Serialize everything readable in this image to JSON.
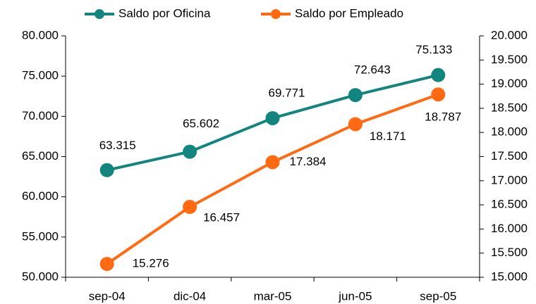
{
  "chart_data": {
    "type": "line",
    "categories": [
      "sep-04",
      "dic-04",
      "mar-05",
      "jun-05",
      "sep-05"
    ],
    "series": [
      {
        "name": "Saldo por Oficina",
        "color": "#13857f",
        "values": [
          63315,
          65602,
          69771,
          72643,
          75133
        ],
        "value_labels": [
          "63.315",
          "65.602",
          "69.771",
          "72.643",
          "75.133"
        ]
      },
      {
        "name": "Saldo por Empleado",
        "color": "#ff6a13",
        "axis": "y2",
        "values": [
          15276,
          16457,
          17384,
          18171,
          18787
        ],
        "value_labels": [
          "15.276",
          "16.457",
          "17.384",
          "18.171",
          "18.787"
        ]
      }
    ],
    "ylim": [
      50000,
      80000
    ],
    "yticks": [
      {
        "value": 50000,
        "label": "50.000"
      },
      {
        "value": 55000,
        "label": "55.000"
      },
      {
        "value": 60000,
        "label": "60.000"
      },
      {
        "value": 65000,
        "label": "65.000"
      },
      {
        "value": 70000,
        "label": "70.000"
      },
      {
        "value": 75000,
        "label": "75.000"
      },
      {
        "value": 80000,
        "label": "80.000"
      }
    ],
    "y2lim": [
      15000,
      20000
    ],
    "y2ticks": [
      {
        "value": 15000,
        "label": "15.000"
      },
      {
        "value": 15500,
        "label": "15.500"
      },
      {
        "value": 16000,
        "label": "16.000"
      },
      {
        "value": 16500,
        "label": "16.500"
      },
      {
        "value": 17000,
        "label": "17.000"
      },
      {
        "value": 17500,
        "label": "17.500"
      },
      {
        "value": 18000,
        "label": "18.000"
      },
      {
        "value": 18500,
        "label": "18.500"
      },
      {
        "value": 19000,
        "label": "19.000"
      },
      {
        "value": 19500,
        "label": "19.500"
      },
      {
        "value": 20000,
        "label": "20.000"
      }
    ],
    "legend": "top"
  }
}
